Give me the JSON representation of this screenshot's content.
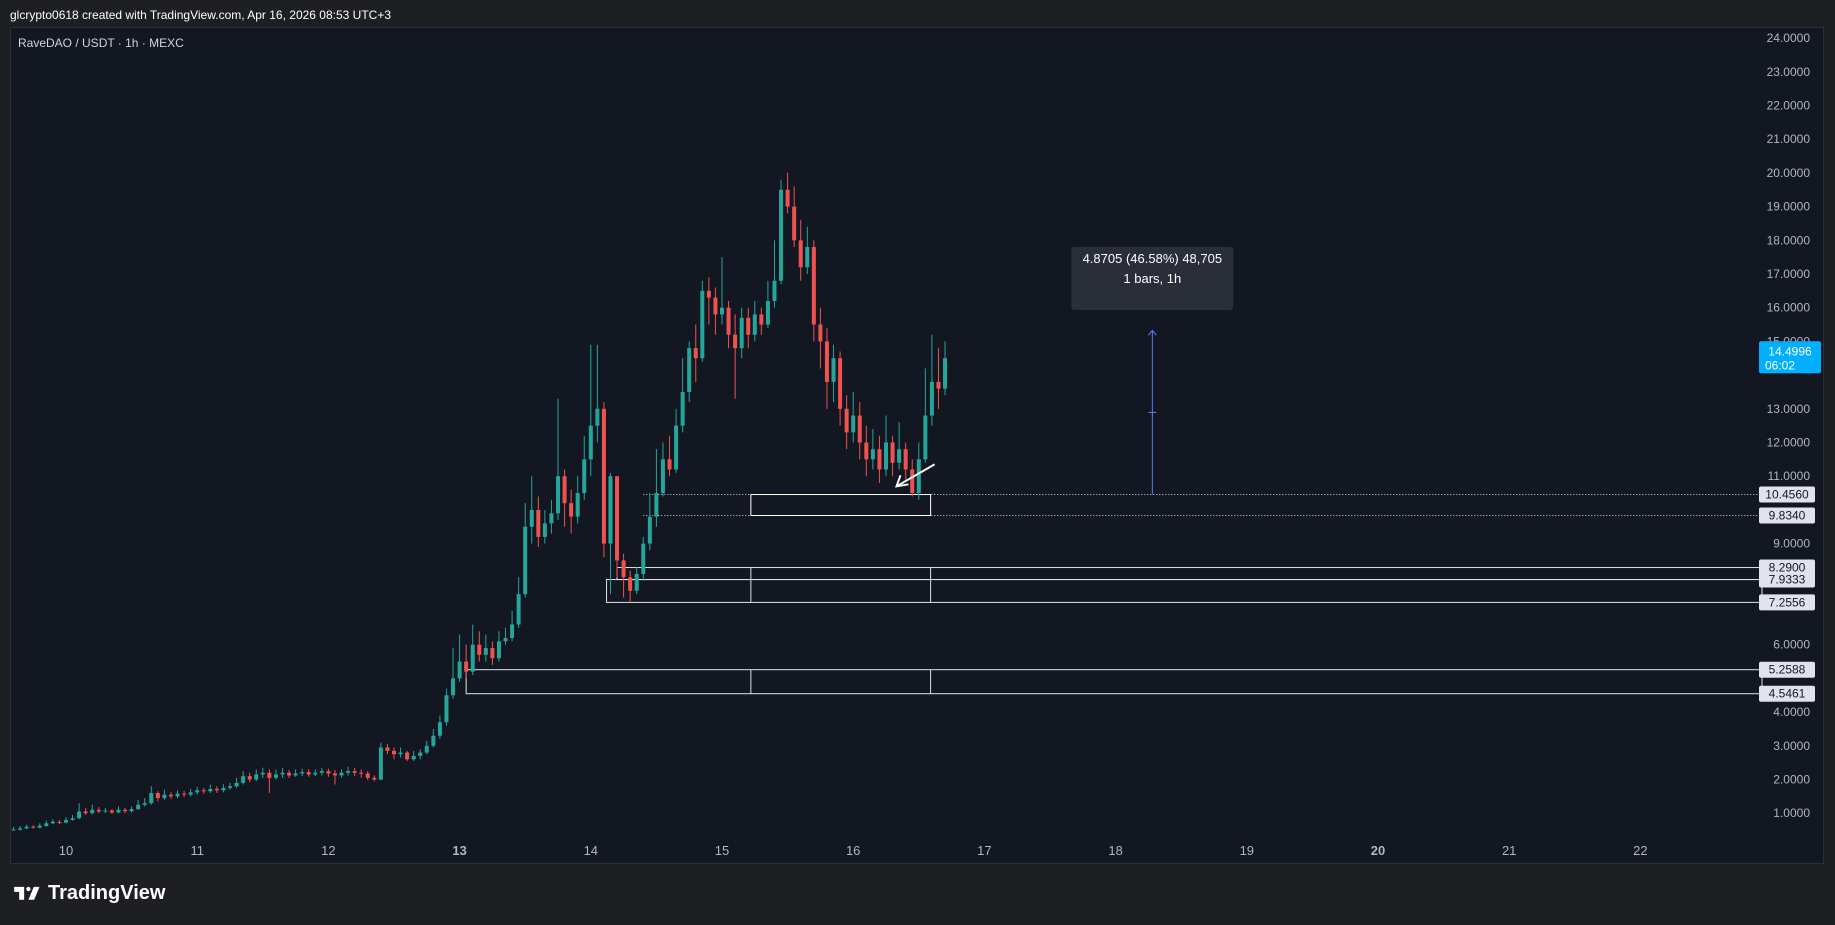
{
  "header": {
    "attribution": "glcrypto0618 created with TradingView.com, Apr 16, 2026 08:53 UTC+3"
  },
  "symbol": {
    "label": "RaveDAO / USDT · 1h · MEXC"
  },
  "footer": {
    "brand": "TradingView"
  },
  "colors": {
    "background": "#131722",
    "up": "#26a69a",
    "down": "#ef5350",
    "price_tag": "#00b0ff",
    "measure": "#5b7ff2",
    "level_line": "#e0e3eb"
  },
  "chart_data": {
    "type": "candlestick",
    "symbol": "RaveDAO / USDT",
    "interval": "1h",
    "exchange": "MEXC",
    "y_axis_ticks": [
      "24.0000",
      "23.0000",
      "22.0000",
      "21.0000",
      "20.0000",
      "19.0000",
      "18.0000",
      "17.0000",
      "16.0000",
      "15.0000",
      "13.0000",
      "12.0000",
      "11.0000",
      "9.0000",
      "6.0000",
      "4.0000",
      "3.0000",
      "2.0000",
      "1.0000"
    ],
    "x_axis_ticks": [
      {
        "label": "10",
        "bold": false,
        "day": 10
      },
      {
        "label": "11",
        "bold": false,
        "day": 11
      },
      {
        "label": "12",
        "bold": false,
        "day": 12
      },
      {
        "label": "13",
        "bold": true,
        "day": 13
      },
      {
        "label": "14",
        "bold": false,
        "day": 14
      },
      {
        "label": "15",
        "bold": false,
        "day": 15
      },
      {
        "label": "16",
        "bold": false,
        "day": 16
      },
      {
        "label": "17",
        "bold": false,
        "day": 17
      },
      {
        "label": "18",
        "bold": false,
        "day": 18
      },
      {
        "label": "19",
        "bold": false,
        "day": 19
      },
      {
        "label": "20",
        "bold": true,
        "day": 20
      },
      {
        "label": "21",
        "bold": false,
        "day": 21
      },
      {
        "label": "22",
        "bold": false,
        "day": 22
      }
    ],
    "ylim": [
      0,
      24.3
    ],
    "xlim": [
      9.57,
      22.97
    ],
    "last_price": {
      "value": "14.4996",
      "countdown": "06:02",
      "price": 14.4996
    },
    "level_tags": [
      {
        "label": "10.4560",
        "price": 10.456,
        "style": "dotted"
      },
      {
        "label": "9.8340",
        "price": 9.834,
        "style": "dotted"
      },
      {
        "label": "8.2900",
        "price": 8.29,
        "style": "solid"
      },
      {
        "label": "7.9333",
        "price": 7.9333,
        "style": "solid"
      },
      {
        "label": "7.2556",
        "price": 7.2556,
        "style": "solid"
      },
      {
        "label": "5.2588",
        "price": 5.2588,
        "style": "solid"
      },
      {
        "label": "4.5461",
        "price": 4.5461,
        "style": "solid"
      }
    ],
    "zones": [
      {
        "from_day": 15.22,
        "to_day": 16.59,
        "top": 10.456,
        "bottom": 9.834
      },
      {
        "from_day": 14.2,
        "to_day": 23.0,
        "top": 8.29,
        "bottom": 7.9333
      },
      {
        "from_day": 14.12,
        "to_day": 23.0,
        "top": 7.9333,
        "bottom": 7.2556
      },
      {
        "from_day": 13.05,
        "to_day": 23.0,
        "top": 5.2588,
        "bottom": 4.5461
      }
    ],
    "zone_dividers": [
      15.22,
      16.59
    ],
    "measure": {
      "day": 18.28,
      "from_price": 10.456,
      "to_price": 15.33,
      "line1": "4.8705 (46.58%) 48,705",
      "line2": "1 bars, 1h"
    },
    "arrow": {
      "from_day": 16.62,
      "from_price": 11.35,
      "to_day": 16.33,
      "to_price": 10.7
    },
    "candles": [
      [
        9.55,
        0.48,
        0.5,
        0.56,
        0.46
      ],
      [
        9.6,
        0.5,
        0.52,
        0.6,
        0.48
      ],
      [
        9.65,
        0.51,
        0.55,
        0.62,
        0.49
      ],
      [
        9.7,
        0.55,
        0.6,
        0.66,
        0.53
      ],
      [
        9.75,
        0.6,
        0.58,
        0.64,
        0.55
      ],
      [
        9.8,
        0.57,
        0.63,
        0.7,
        0.55
      ],
      [
        9.85,
        0.62,
        0.7,
        0.78,
        0.6
      ],
      [
        9.9,
        0.7,
        0.75,
        0.82,
        0.68
      ],
      [
        9.95,
        0.74,
        0.72,
        0.8,
        0.68
      ],
      [
        10.0,
        0.72,
        0.8,
        0.88,
        0.7
      ],
      [
        10.05,
        0.8,
        0.85,
        0.95,
        0.78
      ],
      [
        10.1,
        0.85,
        1.05,
        1.3,
        0.82
      ],
      [
        10.15,
        1.05,
        1.0,
        1.15,
        0.95
      ],
      [
        10.2,
        1.0,
        1.1,
        1.25,
        0.96
      ],
      [
        10.25,
        1.1,
        1.05,
        1.18,
        1.0
      ],
      [
        10.3,
        1.05,
        1.08,
        1.16,
        1.0
      ],
      [
        10.35,
        1.08,
        1.02,
        1.12,
        0.98
      ],
      [
        10.4,
        1.02,
        1.1,
        1.2,
        1.0
      ],
      [
        10.45,
        1.1,
        1.06,
        1.16,
        1.0
      ],
      [
        10.5,
        1.06,
        1.12,
        1.2,
        1.02
      ],
      [
        10.55,
        1.12,
        1.25,
        1.4,
        1.1
      ],
      [
        10.6,
        1.25,
        1.3,
        1.45,
        1.2
      ],
      [
        10.65,
        1.3,
        1.6,
        1.8,
        1.25
      ],
      [
        10.7,
        1.6,
        1.45,
        1.65,
        1.35
      ],
      [
        10.75,
        1.45,
        1.55,
        1.7,
        1.4
      ],
      [
        10.8,
        1.55,
        1.5,
        1.62,
        1.42
      ],
      [
        10.85,
        1.5,
        1.58,
        1.68,
        1.45
      ],
      [
        10.9,
        1.58,
        1.55,
        1.66,
        1.48
      ],
      [
        10.95,
        1.55,
        1.62,
        1.72,
        1.5
      ],
      [
        11.0,
        1.62,
        1.68,
        1.78,
        1.55
      ],
      [
        11.05,
        1.68,
        1.65,
        1.75,
        1.58
      ],
      [
        11.1,
        1.65,
        1.72,
        1.85,
        1.6
      ],
      [
        11.15,
        1.72,
        1.68,
        1.8,
        1.6
      ],
      [
        11.2,
        1.68,
        1.75,
        1.86,
        1.62
      ],
      [
        11.25,
        1.75,
        1.8,
        1.9,
        1.7
      ],
      [
        11.3,
        1.8,
        1.9,
        2.05,
        1.75
      ],
      [
        11.35,
        1.9,
        2.1,
        2.25,
        1.85
      ],
      [
        11.4,
        2.1,
        2.0,
        2.2,
        1.92
      ],
      [
        11.45,
        2.0,
        2.15,
        2.3,
        1.95
      ],
      [
        11.5,
        2.15,
        2.2,
        2.35,
        2.05
      ],
      [
        11.55,
        2.2,
        2.05,
        2.3,
        1.6
      ],
      [
        11.6,
        2.05,
        2.15,
        2.3,
        2.0
      ],
      [
        11.65,
        2.15,
        2.2,
        2.35,
        2.05
      ],
      [
        11.7,
        2.2,
        2.12,
        2.28,
        2.05
      ],
      [
        11.75,
        2.12,
        2.18,
        2.3,
        2.08
      ],
      [
        11.8,
        2.18,
        2.22,
        2.32,
        2.1
      ],
      [
        11.85,
        2.22,
        2.15,
        2.3,
        2.08
      ],
      [
        11.9,
        2.15,
        2.2,
        2.3,
        2.1
      ],
      [
        11.95,
        2.2,
        2.25,
        2.35,
        2.12
      ],
      [
        12.0,
        2.25,
        2.18,
        2.32,
        2.08
      ],
      [
        12.05,
        2.18,
        2.12,
        2.28,
        1.85
      ],
      [
        12.1,
        2.12,
        2.2,
        2.3,
        2.05
      ],
      [
        12.15,
        2.2,
        2.25,
        2.38,
        2.12
      ],
      [
        12.2,
        2.25,
        2.2,
        2.35,
        2.1
      ],
      [
        12.25,
        2.2,
        2.18,
        2.3,
        2.05
      ],
      [
        12.3,
        2.18,
        2.05,
        2.25,
        1.98
      ],
      [
        12.35,
        2.05,
        2.0,
        2.12,
        1.95
      ],
      [
        12.4,
        2.0,
        2.95,
        3.1,
        1.98
      ],
      [
        12.45,
        2.95,
        2.85,
        3.05,
        2.75
      ],
      [
        12.5,
        2.85,
        2.75,
        2.95,
        2.6
      ],
      [
        12.55,
        2.75,
        2.8,
        2.95,
        2.65
      ],
      [
        12.6,
        2.8,
        2.6,
        2.85,
        2.55
      ],
      [
        12.65,
        2.6,
        2.7,
        2.85,
        2.55
      ],
      [
        12.7,
        2.7,
        2.8,
        2.9,
        2.6
      ],
      [
        12.75,
        2.8,
        3.0,
        3.15,
        2.75
      ],
      [
        12.8,
        3.0,
        3.3,
        3.5,
        2.95
      ],
      [
        12.85,
        3.3,
        3.7,
        3.9,
        3.2
      ],
      [
        12.9,
        3.7,
        4.5,
        4.7,
        3.6
      ],
      [
        12.95,
        4.5,
        5.0,
        5.9,
        4.4
      ],
      [
        13.0,
        5.0,
        5.5,
        6.3,
        4.9
      ],
      [
        13.05,
        5.5,
        5.2,
        6.0,
        5.0
      ],
      [
        13.1,
        5.2,
        6.0,
        6.6,
        5.1
      ],
      [
        13.15,
        6.0,
        5.7,
        6.4,
        5.5
      ],
      [
        13.2,
        5.7,
        5.9,
        6.3,
        5.5
      ],
      [
        13.25,
        5.9,
        5.6,
        6.1,
        5.4
      ],
      [
        13.3,
        5.6,
        6.1,
        6.4,
        5.5
      ],
      [
        13.35,
        6.1,
        6.2,
        6.5,
        6.0
      ],
      [
        13.4,
        6.2,
        6.6,
        7.0,
        6.1
      ],
      [
        13.45,
        6.6,
        7.5,
        8.0,
        6.5
      ],
      [
        13.5,
        7.5,
        9.5,
        10.2,
        7.4
      ],
      [
        13.55,
        9.5,
        10.0,
        11.0,
        9.0
      ],
      [
        13.6,
        10.0,
        9.2,
        10.4,
        8.9
      ],
      [
        13.65,
        9.2,
        9.6,
        10.0,
        9.0
      ],
      [
        13.7,
        9.6,
        9.9,
        10.3,
        9.3
      ],
      [
        13.75,
        9.9,
        11.0,
        13.3,
        9.7
      ],
      [
        13.8,
        11.0,
        10.2,
        11.2,
        9.5
      ],
      [
        13.85,
        10.2,
        9.8,
        10.6,
        9.3
      ],
      [
        13.9,
        9.8,
        10.5,
        11.0,
        9.6
      ],
      [
        13.95,
        10.5,
        11.5,
        12.2,
        10.3
      ],
      [
        14.0,
        11.5,
        12.5,
        14.9,
        11.0
      ],
      [
        14.05,
        12.5,
        13.0,
        14.9,
        12.0
      ],
      [
        14.1,
        13.0,
        9.0,
        13.2,
        8.6
      ],
      [
        14.15,
        9.0,
        11.0,
        11.1,
        7.5
      ],
      [
        14.2,
        11.0,
        8.5,
        11.0,
        8.0
      ],
      [
        14.25,
        8.5,
        8.0,
        8.7,
        7.4
      ],
      [
        14.3,
        8.0,
        7.6,
        8.2,
        7.26
      ],
      [
        14.35,
        7.6,
        8.1,
        8.3,
        7.5
      ],
      [
        14.4,
        8.1,
        9.0,
        9.2,
        7.9
      ],
      [
        14.45,
        9.0,
        9.8,
        10.5,
        8.8
      ],
      [
        14.5,
        9.8,
        10.5,
        11.8,
        9.5
      ],
      [
        14.55,
        10.5,
        11.5,
        12.0,
        10.4
      ],
      [
        14.6,
        11.5,
        11.2,
        12.2,
        11.0
      ],
      [
        14.65,
        11.2,
        12.5,
        13.0,
        11.1
      ],
      [
        14.7,
        12.5,
        13.5,
        14.5,
        12.3
      ],
      [
        14.75,
        13.5,
        14.8,
        15.0,
        13.2
      ],
      [
        14.8,
        14.8,
        14.5,
        15.5,
        13.8
      ],
      [
        14.85,
        14.5,
        16.5,
        16.8,
        14.4
      ],
      [
        14.9,
        16.5,
        16.3,
        16.9,
        15.5
      ],
      [
        14.95,
        16.3,
        15.8,
        16.6,
        15.2
      ],
      [
        15.0,
        15.8,
        16.0,
        17.5,
        15.5
      ],
      [
        15.05,
        16.0,
        15.2,
        16.2,
        14.8
      ],
      [
        15.1,
        15.2,
        14.8,
        15.8,
        13.3
      ],
      [
        15.15,
        14.8,
        15.7,
        16.0,
        14.5
      ],
      [
        15.2,
        15.7,
        15.2,
        16.0,
        14.8
      ],
      [
        15.25,
        15.2,
        15.8,
        16.2,
        15.0
      ],
      [
        15.3,
        15.8,
        15.5,
        16.0,
        15.2
      ],
      [
        15.35,
        15.5,
        16.2,
        16.8,
        15.4
      ],
      [
        15.4,
        16.2,
        16.8,
        18.0,
        16.0
      ],
      [
        15.45,
        16.8,
        19.5,
        19.8,
        16.7
      ],
      [
        15.5,
        19.5,
        19.0,
        20.0,
        18.8
      ],
      [
        15.55,
        19.0,
        18.0,
        19.6,
        17.8
      ],
      [
        15.6,
        18.0,
        17.2,
        18.6,
        16.8
      ],
      [
        15.65,
        17.2,
        17.8,
        18.4,
        17.0
      ],
      [
        15.7,
        17.8,
        15.5,
        18.0,
        15.0
      ],
      [
        15.75,
        15.5,
        15.0,
        16.0,
        14.2
      ],
      [
        15.8,
        15.0,
        13.8,
        15.4,
        13.0
      ],
      [
        15.85,
        13.8,
        14.5,
        14.9,
        13.2
      ],
      [
        15.9,
        14.5,
        13.0,
        14.7,
        12.5
      ],
      [
        15.95,
        13.0,
        12.3,
        13.4,
        11.8
      ],
      [
        16.0,
        12.3,
        12.8,
        13.5,
        12.0
      ],
      [
        16.05,
        12.8,
        12.0,
        13.2,
        11.5
      ],
      [
        16.1,
        12.0,
        11.5,
        12.5,
        11.0
      ],
      [
        16.15,
        11.5,
        11.8,
        12.4,
        11.2
      ],
      [
        16.2,
        11.8,
        11.2,
        12.2,
        10.8
      ],
      [
        16.25,
        11.2,
        12.0,
        12.8,
        11.0
      ],
      [
        16.3,
        12.0,
        11.4,
        12.2,
        11.0
      ],
      [
        16.35,
        11.4,
        11.8,
        12.6,
        11.2
      ],
      [
        16.4,
        11.8,
        11.2,
        12.0,
        10.9
      ],
      [
        16.45,
        11.2,
        10.5,
        11.5,
        10.4
      ],
      [
        16.5,
        10.5,
        11.5,
        12.0,
        10.3
      ],
      [
        16.55,
        11.5,
        12.8,
        14.2,
        11.4
      ],
      [
        16.6,
        12.8,
        13.8,
        15.2,
        12.5
      ],
      [
        16.65,
        13.8,
        13.6,
        14.8,
        13.0
      ],
      [
        16.7,
        13.6,
        14.5,
        15.0,
        13.4
      ]
    ]
  }
}
